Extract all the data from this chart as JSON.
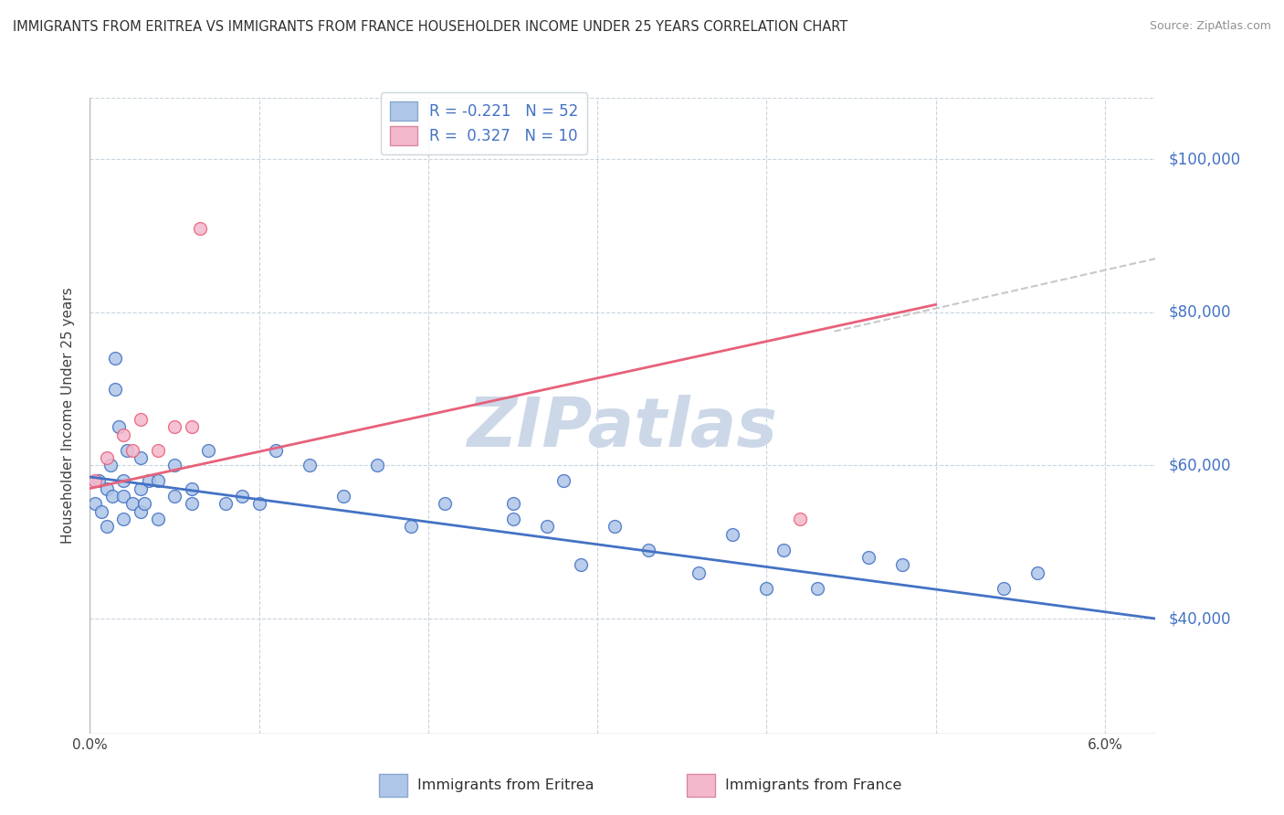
{
  "title": "IMMIGRANTS FROM ERITREA VS IMMIGRANTS FROM FRANCE HOUSEHOLDER INCOME UNDER 25 YEARS CORRELATION CHART",
  "source": "Source: ZipAtlas.com",
  "ylabel": "Householder Income Under 25 years",
  "xlim": [
    0.0,
    0.063
  ],
  "ylim": [
    25000,
    108000
  ],
  "yticks": [
    40000,
    60000,
    80000,
    100000
  ],
  "ytick_labels": [
    "$40,000",
    "$60,000",
    "$80,000",
    "$100,000"
  ],
  "xticks": [
    0.0,
    0.01,
    0.02,
    0.03,
    0.04,
    0.05,
    0.06
  ],
  "xtick_labels": [
    "0.0%",
    "",
    "",
    "",
    "",
    "",
    "6.0%"
  ],
  "legend_R1": "R = -0.221",
  "legend_N1": "N = 52",
  "legend_R2": "R =  0.327",
  "legend_N2": "N = 10",
  "color_eritrea": "#aec6e8",
  "color_france": "#f4b8cc",
  "line_color_eritrea": "#4472c4",
  "line_color_france": "#e8607a",
  "line_color_dashed": "#c8c8c8",
  "watermark": "ZIPatlas",
  "watermark_color": "#ccd8e8",
  "background_color": "#ffffff",
  "grid_color": "#c8d4dc",
  "title_color": "#303030",
  "right_label_color": "#4472c4",
  "eritrea_points_x": [
    0.0003,
    0.0005,
    0.0007,
    0.001,
    0.001,
    0.0012,
    0.0013,
    0.0015,
    0.0015,
    0.0017,
    0.002,
    0.002,
    0.002,
    0.0022,
    0.0025,
    0.003,
    0.003,
    0.003,
    0.0032,
    0.0035,
    0.004,
    0.004,
    0.005,
    0.005,
    0.006,
    0.006,
    0.007,
    0.008,
    0.009,
    0.01,
    0.011,
    0.013,
    0.015,
    0.017,
    0.019,
    0.021,
    0.025,
    0.025,
    0.027,
    0.028,
    0.029,
    0.031,
    0.033,
    0.036,
    0.038,
    0.04,
    0.041,
    0.043,
    0.046,
    0.048,
    0.054,
    0.056
  ],
  "eritrea_points_y": [
    55000,
    58000,
    54000,
    57000,
    52000,
    60000,
    56000,
    70000,
    74000,
    65000,
    53000,
    56000,
    58000,
    62000,
    55000,
    57000,
    61000,
    54000,
    55000,
    58000,
    58000,
    53000,
    56000,
    60000,
    57000,
    55000,
    62000,
    55000,
    56000,
    55000,
    62000,
    60000,
    56000,
    60000,
    52000,
    55000,
    55000,
    53000,
    52000,
    58000,
    47000,
    52000,
    49000,
    46000,
    51000,
    44000,
    49000,
    44000,
    48000,
    47000,
    44000,
    46000
  ],
  "france_points_x": [
    0.0003,
    0.001,
    0.002,
    0.0025,
    0.003,
    0.004,
    0.005,
    0.006,
    0.0065,
    0.042
  ],
  "france_points_y": [
    58000,
    61000,
    64000,
    62000,
    66000,
    62000,
    65000,
    65000,
    91000,
    53000
  ],
  "eritrea_trend_x": [
    0.0,
    0.063
  ],
  "eritrea_trend_y": [
    58500,
    40000
  ],
  "france_trend_x": [
    0.0,
    0.05
  ],
  "france_trend_y": [
    57000,
    81000
  ],
  "dashed_trend_x": [
    0.044,
    0.063
  ],
  "dashed_trend_y": [
    77500,
    87000
  ]
}
